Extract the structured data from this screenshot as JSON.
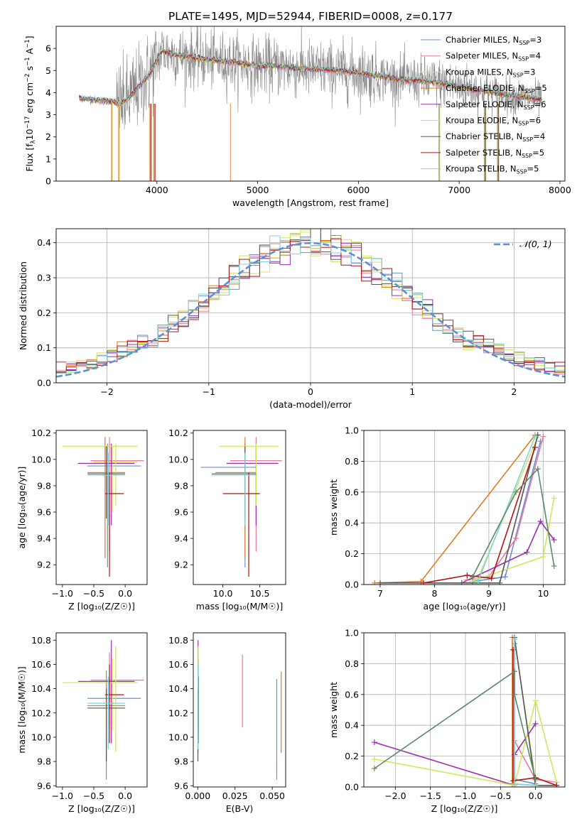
{
  "figure": {
    "title": "PLATE=1495, MJD=52944, FIBERID=0008, z=0.177"
  },
  "colors": {
    "chabrier_miles": "#6a8fd8",
    "salpeter_miles": "#e87a9f",
    "kroupa_miles": "#d8e070",
    "chabrier_elodie": "#e07b25",
    "salpeter_elodie": "#9a2db5",
    "kroupa_elodie": "#cfe85a",
    "chabrier_stelib": "#555555",
    "salpeter_stelib": "#b01515",
    "kroupa_stelib": "#7fd6d6",
    "data": "#888888",
    "normal": "#5b8fd6",
    "grid": "#b0b0b0"
  },
  "chart_data": [
    {
      "id": "spectrum",
      "type": "line",
      "xlabel": "wavelength [Angstrom, rest frame]",
      "ylabel_parts": [
        "Flux [f",
        "λ",
        "10",
        "−17",
        " erg cm",
        "−2",
        " s",
        "−1",
        " A",
        "−1",
        "]"
      ],
      "xlim": [
        3000,
        8050
      ],
      "ylim": [
        0,
        7
      ],
      "xticks": [
        4000,
        5000,
        6000,
        7000,
        8000
      ],
      "yticks": [
        0,
        1,
        2,
        3,
        4,
        5,
        6
      ],
      "grid": false,
      "legend_placement": "right",
      "legend": [
        {
          "text": "Chabrier MILES, N",
          "sub": "SSP",
          "suffix": "=3",
          "color_key": "chabrier_miles"
        },
        {
          "text": "Salpeter MILES, N",
          "sub": "SSP",
          "suffix": "=4",
          "color_key": "salpeter_miles"
        },
        {
          "text": "Kroupa MILES, N",
          "sub": "SSP",
          "suffix": "=3",
          "color_key": "kroupa_miles"
        },
        {
          "text": "Chabrier ELODIE, N",
          "sub": "SSP",
          "suffix": "=5",
          "color_key": "chabrier_elodie"
        },
        {
          "text": "Salpeter ELODIE, N",
          "sub": "SSP",
          "suffix": "=6",
          "color_key": "salpeter_elodie"
        },
        {
          "text": "Kroupa ELODIE, N",
          "sub": "SSP",
          "suffix": "=6",
          "color_key": "kroupa_elodie"
        },
        {
          "text": "Chabrier STELIB, N",
          "sub": "SSP",
          "suffix": "=4",
          "color_key": "chabrier_stelib"
        },
        {
          "text": "Salpeter STELIB, N",
          "sub": "SSP",
          "suffix": "=5",
          "color_key": "salpeter_stelib"
        },
        {
          "text": "Kroupa STELIB, N",
          "sub": "SSP",
          "suffix": "=5",
          "color_key": "kroupa_stelib"
        }
      ],
      "x_range_data": [
        3230,
        7820
      ],
      "model_profile": {
        "x": [
          3230,
          3400,
          3550,
          3650,
          3750,
          3850,
          3950,
          4050,
          4200,
          4400,
          4600,
          4800,
          5000,
          5200,
          5400,
          5600,
          5800,
          6000,
          6200,
          6400,
          6600,
          6800,
          7000,
          7200,
          7400,
          7600,
          7820
        ],
        "y": [
          3.75,
          3.65,
          3.6,
          3.5,
          3.9,
          4.4,
          5.0,
          5.9,
          5.7,
          5.55,
          5.45,
          5.35,
          5.2,
          5.2,
          5.1,
          5.05,
          5.0,
          4.9,
          4.75,
          4.6,
          4.55,
          4.45,
          4.25,
          4.1,
          3.95,
          3.8,
          3.7
        ]
      }
    },
    {
      "id": "residuals",
      "type": "step",
      "xlabel": "(data-model)/error",
      "ylabel": "Normed distribution",
      "xlim": [
        -2.5,
        2.5
      ],
      "ylim": [
        0,
        0.44
      ],
      "xticks": [
        -2,
        -1,
        0,
        1,
        2
      ],
      "yticks": [
        0.0,
        0.1,
        0.2,
        0.3,
        0.4
      ],
      "grid": true,
      "legend_placement": "top-right",
      "normal_label": "𝒩(0, 1)",
      "bin_width": 0.1
    },
    {
      "id": "age_vs_Z",
      "type": "errorbar",
      "xlabel": "Z [log₁₀(Z/Z☉)]",
      "ylabel": "age  [log₁₀(age/yr)]",
      "xlim": [
        -1.1,
        0.35
      ],
      "ylim": [
        9.05,
        10.22
      ],
      "xticks": [
        -1.0,
        -0.5,
        0.0
      ],
      "yticks": [
        9.2,
        9.4,
        9.6,
        9.8,
        10.0,
        10.2
      ],
      "points": [
        {
          "color_key": "chabrier_miles",
          "x": -0.28,
          "xlo": -0.6,
          "xhi": 0.25,
          "y": 9.95,
          "ylo": 9.18,
          "yhi": 10.12
        },
        {
          "color_key": "salpeter_miles",
          "x": -0.25,
          "xlo": -0.55,
          "xhi": 0.3,
          "y": 9.99,
          "ylo": 9.3,
          "yhi": 10.17
        },
        {
          "color_key": "kroupa_miles",
          "x": -0.2,
          "xlo": -0.5,
          "xhi": 0.2,
          "y": 9.98,
          "ylo": 9.6,
          "yhi": 10.1
        },
        {
          "color_key": "chabrier_elodie",
          "x": -0.32,
          "xlo": -0.6,
          "xhi": 0.0,
          "y": 9.9,
          "ylo": 9.25,
          "yhi": 10.17
        },
        {
          "color_key": "salpeter_elodie",
          "x": -0.22,
          "xlo": -0.75,
          "xhi": 0.15,
          "y": 9.97,
          "ylo": 9.5,
          "yhi": 10.12
        },
        {
          "color_key": "kroupa_elodie",
          "x": -0.15,
          "xlo": -1.0,
          "xhi": 0.2,
          "y": 10.1,
          "ylo": 9.65,
          "yhi": 10.12
        },
        {
          "color_key": "chabrier_stelib",
          "x": -0.3,
          "xlo": -0.6,
          "xhi": 0.0,
          "y": 9.89,
          "ylo": 9.55,
          "yhi": 10.1
        },
        {
          "color_key": "salpeter_stelib",
          "x": -0.25,
          "xlo": -0.32,
          "xhi": -0.02,
          "y": 9.74,
          "ylo": 9.11,
          "yhi": 9.9
        },
        {
          "color_key": "kroupa_stelib",
          "x": -0.27,
          "xlo": -0.6,
          "xhi": 0.0,
          "y": 9.88,
          "ylo": 9.5,
          "yhi": 10.05
        }
      ]
    },
    {
      "id": "age_vs_mass",
      "type": "errorbar",
      "xlabel": "mass [log₁₀(M/M☉)]",
      "ylabel": "",
      "xlim": [
        9.6,
        10.85
      ],
      "ylim": [
        9.05,
        10.22
      ],
      "xticks": [
        10.0,
        10.5
      ],
      "yticks": [
        9.2,
        9.4,
        9.6,
        9.8,
        10.0,
        10.2
      ],
      "points": [
        {
          "color_key": "chabrier_miles",
          "x": 10.3,
          "xlo": 9.7,
          "xhi": 10.45,
          "y": 9.94,
          "ylo": 9.18,
          "yhi": 10.12
        },
        {
          "color_key": "salpeter_miles",
          "x": 10.45,
          "xlo": 10.1,
          "xhi": 10.8,
          "y": 9.99,
          "ylo": 9.3,
          "yhi": 10.17
        },
        {
          "color_key": "kroupa_miles",
          "x": 10.45,
          "xlo": 10.1,
          "xhi": 10.7,
          "y": 9.97,
          "ylo": 9.6,
          "yhi": 10.1
        },
        {
          "color_key": "chabrier_elodie",
          "x": 10.3,
          "xlo": 9.9,
          "xhi": 10.45,
          "y": 9.9,
          "ylo": 9.25,
          "yhi": 10.17
        },
        {
          "color_key": "salpeter_elodie",
          "x": 10.45,
          "xlo": 10.05,
          "xhi": 10.75,
          "y": 9.97,
          "ylo": 9.5,
          "yhi": 10.12
        },
        {
          "color_key": "kroupa_elodie",
          "x": 10.45,
          "xlo": 9.95,
          "xhi": 10.75,
          "y": 10.1,
          "ylo": 9.65,
          "yhi": 10.12
        },
        {
          "color_key": "chabrier_stelib",
          "x": 10.3,
          "xlo": 9.85,
          "xhi": 10.45,
          "y": 9.89,
          "ylo": 9.55,
          "yhi": 10.1
        },
        {
          "color_key": "salpeter_stelib",
          "x": 10.35,
          "xlo": 10.0,
          "xhi": 10.5,
          "y": 9.74,
          "ylo": 9.11,
          "yhi": 9.9
        },
        {
          "color_key": "kroupa_stelib",
          "x": 10.3,
          "xlo": 9.85,
          "xhi": 10.45,
          "y": 9.88,
          "ylo": 9.5,
          "yhi": 10.05
        }
      ]
    },
    {
      "id": "weight_vs_age",
      "type": "line",
      "xlabel": "age  [log₁₀(age/yr)]",
      "ylabel": "mass weight",
      "xlim": [
        6.7,
        10.4
      ],
      "ylim": [
        0,
        1
      ],
      "xticks": [
        7,
        8,
        9,
        10
      ],
      "yticks": [
        0.0,
        0.2,
        0.4,
        0.6,
        0.8,
        1.0
      ],
      "grid": true,
      "series": [
        {
          "color_key": "chabrier_miles",
          "x": [
            8.7,
            9.3,
            9.95
          ],
          "y": [
            0.02,
            0.05,
            0.93
          ]
        },
        {
          "color_key": "salpeter_miles",
          "x": [
            8.6,
            9.0,
            9.5,
            10.0
          ],
          "y": [
            0.03,
            0.05,
            0.3,
            0.96
          ]
        },
        {
          "color_key": "kroupa_miles",
          "x": [
            8.8,
            9.9
          ],
          "y": [
            0.04,
            0.96
          ]
        },
        {
          "color_key": "chabrier_elodie",
          "x": [
            6.9,
            7.75,
            9.85
          ],
          "y": [
            0.01,
            0.02,
            0.97
          ]
        },
        {
          "color_key": "salpeter_elodie",
          "x": [
            8.5,
            9.7,
            9.95,
            10.2
          ],
          "y": [
            0.01,
            0.21,
            0.41,
            0.29
          ]
        },
        {
          "color_key": "kroupa_elodie",
          "x": [
            8.6,
            10.0,
            10.2
          ],
          "y": [
            0.01,
            0.18,
            0.56
          ]
        },
        {
          "color_key": "chabrier_stelib",
          "x": [
            7.0,
            9.2,
            9.9
          ],
          "y": [
            0.01,
            0.01,
            0.97
          ]
        },
        {
          "color_key": "salpeter_stelib",
          "x": [
            7.8,
            8.6,
            9.05,
            9.85
          ],
          "y": [
            0.01,
            0.06,
            0.04,
            0.89
          ]
        },
        {
          "color_key": "kroupa_stelib",
          "x": [
            8.8,
            9.85
          ],
          "y": [
            0.02,
            0.96
          ]
        },
        {
          "color_key": "chabrier_stelib_alt",
          "x": [
            8.7,
            9.5,
            9.9,
            10.2
          ],
          "y": [
            0.05,
            0.6,
            0.75,
            0.12
          ]
        }
      ]
    },
    {
      "id": "mass_vs_Z",
      "type": "errorbar",
      "xlabel": "Z [log₁₀(Z/Z☉)]",
      "ylabel": "mass [log₁₀(M/M☉)]",
      "xlim": [
        -1.1,
        0.35
      ],
      "ylim": [
        9.59,
        10.86
      ],
      "xticks": [
        -1.0,
        -0.5,
        0.0
      ],
      "yticks": [
        9.6,
        9.8,
        10.0,
        10.2,
        10.4,
        10.6,
        10.8
      ],
      "points": [
        {
          "color_key": "chabrier_miles",
          "x": -0.3,
          "xlo": -0.6,
          "xhi": 0.25,
          "y": 10.32,
          "ylo": 9.65,
          "yhi": 10.55
        },
        {
          "color_key": "salpeter_miles",
          "x": -0.25,
          "xlo": -0.55,
          "xhi": 0.3,
          "y": 10.47,
          "ylo": 10.1,
          "yhi": 10.7
        },
        {
          "color_key": "kroupa_miles",
          "x": -0.2,
          "xlo": -0.5,
          "xhi": 0.2,
          "y": 10.45,
          "ylo": 10.05,
          "yhi": 10.65
        },
        {
          "color_key": "chabrier_elodie",
          "x": -0.3,
          "xlo": -0.6,
          "xhi": 0.0,
          "y": 10.26,
          "ylo": 9.9,
          "yhi": 10.45
        },
        {
          "color_key": "salpeter_elodie",
          "x": -0.22,
          "xlo": -0.75,
          "xhi": 0.15,
          "y": 10.46,
          "ylo": 9.95,
          "yhi": 10.8
        },
        {
          "color_key": "kroupa_elodie",
          "x": -0.15,
          "xlo": -1.0,
          "xhi": 0.2,
          "y": 10.45,
          "ylo": 9.88,
          "yhi": 10.75
        },
        {
          "color_key": "chabrier_stelib",
          "x": -0.3,
          "xlo": -0.6,
          "xhi": 0.0,
          "y": 10.24,
          "ylo": 9.8,
          "yhi": 10.4
        },
        {
          "color_key": "salpeter_stelib",
          "x": -0.25,
          "xlo": -0.32,
          "xhi": -0.02,
          "y": 10.35,
          "ylo": 9.95,
          "yhi": 10.6
        },
        {
          "color_key": "kroupa_stelib",
          "x": -0.27,
          "xlo": -0.6,
          "xhi": 0.0,
          "y": 10.28,
          "ylo": 9.9,
          "yhi": 10.5
        }
      ]
    },
    {
      "id": "mass_vs_ebv",
      "type": "errorbar",
      "xlabel": "E(B-V)",
      "ylabel": "",
      "xlim": [
        -0.003,
        0.059
      ],
      "ylim": [
        9.59,
        10.86
      ],
      "xticks": [
        0.0,
        0.025,
        0.05
      ],
      "xtick_labels": [
        "0.000",
        "0.025",
        "0.050"
      ],
      "yticks": [
        9.6,
        9.8,
        10.0,
        10.2,
        10.4,
        10.6,
        10.8
      ],
      "points": [
        {
          "color_key": "chabrier_miles",
          "x": 0.053,
          "y": 10.32,
          "ylo": 9.65,
          "yhi": 10.48
        },
        {
          "color_key": "salpeter_miles",
          "x": 0.03,
          "y": 10.4,
          "ylo": 10.08,
          "yhi": 10.68
        },
        {
          "color_key": "kroupa_miles",
          "x": 0.0005,
          "y": 10.45,
          "ylo": 10.05,
          "yhi": 10.65
        },
        {
          "color_key": "chabrier_elodie",
          "x": 0.056,
          "y": 10.3,
          "ylo": 9.87,
          "yhi": 10.54
        },
        {
          "color_key": "salpeter_elodie",
          "x": 0.0002,
          "y": 10.46,
          "ylo": 9.95,
          "yhi": 10.8
        },
        {
          "color_key": "kroupa_elodie",
          "x": 0.0003,
          "y": 10.45,
          "ylo": 9.88,
          "yhi": 10.75
        },
        {
          "color_key": "chabrier_stelib",
          "x": 0.0001,
          "y": 10.24,
          "ylo": 9.8,
          "yhi": 10.4
        },
        {
          "color_key": "salpeter_stelib",
          "x": 0.0004,
          "y": 10.35,
          "ylo": 9.95,
          "yhi": 10.5
        },
        {
          "color_key": "kroupa_stelib",
          "x": 0.0002,
          "y": 10.28,
          "ylo": 9.9,
          "yhi": 10.6
        }
      ]
    },
    {
      "id": "weight_vs_Z",
      "type": "line",
      "xlabel": "Z [log₁₀(Z/Z☉)]",
      "ylabel": "mass weight",
      "xlim": [
        -2.45,
        0.42
      ],
      "ylim": [
        0,
        1
      ],
      "xticks": [
        -2.0,
        -1.5,
        -1.0,
        -0.5,
        0.0
      ],
      "yticks": [
        0.0,
        0.2,
        0.4,
        0.6,
        0.8,
        1.0
      ],
      "grid": true,
      "series": [
        {
          "color_key": "chabrier_miles",
          "x": [
            -0.3,
            -0.3,
            0.0
          ],
          "y": [
            0.93,
            0.05,
            0.02
          ]
        },
        {
          "color_key": "salpeter_miles",
          "x": [
            -0.3,
            -0.3,
            0.0,
            0.3
          ],
          "y": [
            0.96,
            0.3,
            0.05,
            0.03
          ]
        },
        {
          "color_key": "kroupa_miles",
          "x": [
            -0.3,
            0.0
          ],
          "y": [
            0.96,
            0.04
          ]
        },
        {
          "color_key": "chabrier_elodie",
          "x": [
            -0.33,
            -0.33,
            0.0
          ],
          "y": [
            0.97,
            0.02,
            0.01
          ]
        },
        {
          "color_key": "salpeter_elodie",
          "x": [
            -2.3,
            -0.3,
            -0.3,
            0.0
          ],
          "y": [
            0.29,
            0.01,
            0.21,
            0.41
          ]
        },
        {
          "color_key": "kroupa_elodie",
          "x": [
            -2.3,
            -0.3,
            0.0,
            0.3
          ],
          "y": [
            0.18,
            0.01,
            0.56,
            0.03
          ]
        },
        {
          "color_key": "chabrier_stelib",
          "x": [
            -0.3,
            0.0,
            0.3
          ],
          "y": [
            0.97,
            0.01,
            0.01
          ]
        },
        {
          "color_key": "salpeter_stelib",
          "x": [
            -0.32,
            -0.32,
            0.0,
            0.3
          ],
          "y": [
            0.89,
            0.04,
            0.06,
            0.01
          ]
        },
        {
          "color_key": "kroupa_stelib",
          "x": [
            -0.3,
            -0.3,
            0.0
          ],
          "y": [
            0.96,
            0.02,
            0.01
          ]
        },
        {
          "color_key": "chabrier_stelib_alt",
          "x": [
            -2.3,
            -0.3,
            -0.3,
            0.0
          ],
          "y": [
            0.12,
            0.75,
            0.6,
            0.05
          ]
        }
      ]
    }
  ]
}
